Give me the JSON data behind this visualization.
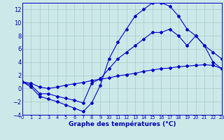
{
  "xlabel": "Graphe des températures (°C)",
  "bg_color": "#cce8e8",
  "line_color": "#0000cc",
  "grid_color": "#aacaca",
  "tick_color": "#0000bb",
  "xlim_min": 0,
  "xlim_max": 23,
  "ylim_min": -4,
  "ylim_max": 13,
  "yticks": [
    -4,
    -2,
    0,
    2,
    4,
    6,
    8,
    10,
    12
  ],
  "xticks": [
    0,
    1,
    2,
    3,
    4,
    5,
    6,
    7,
    8,
    9,
    10,
    11,
    12,
    13,
    14,
    15,
    16,
    17,
    18,
    19,
    20,
    21,
    22,
    23
  ],
  "line1_x": [
    0,
    1,
    2,
    3,
    4,
    5,
    6,
    7,
    8,
    9,
    10,
    11,
    12,
    13,
    14,
    15,
    16,
    17,
    18,
    19,
    20,
    21,
    22,
    23
  ],
  "line1_y": [
    1.0,
    0.2,
    -1.2,
    -1.6,
    -2.0,
    -2.5,
    -3.0,
    -3.5,
    -2.2,
    0.5,
    4.5,
    7.0,
    9.0,
    11.0,
    12.0,
    13.0,
    13.0,
    12.5,
    11.0,
    9.0,
    8.0,
    6.5,
    4.0,
    3.0
  ],
  "line2_x": [
    0,
    1,
    2,
    3,
    4,
    5,
    6,
    7,
    8,
    9,
    10,
    11,
    12,
    13,
    14,
    15,
    16,
    17,
    18,
    19,
    20,
    21,
    22,
    23
  ],
  "line2_y": [
    1.0,
    0.5,
    -0.8,
    -0.8,
    -1.2,
    -1.5,
    -1.8,
    -2.2,
    0.8,
    1.5,
    3.0,
    4.5,
    5.5,
    6.5,
    7.5,
    8.5,
    8.5,
    9.0,
    8.0,
    6.5,
    8.0,
    6.5,
    5.5,
    4.5
  ],
  "line3_x": [
    0,
    1,
    2,
    3,
    4,
    5,
    6,
    7,
    8,
    9,
    10,
    11,
    12,
    13,
    14,
    15,
    16,
    17,
    18,
    19,
    20,
    21,
    22,
    23
  ],
  "line3_y": [
    1.0,
    0.8,
    0.2,
    0.0,
    0.2,
    0.5,
    0.7,
    0.9,
    1.2,
    1.4,
    1.6,
    1.9,
    2.1,
    2.3,
    2.6,
    2.8,
    3.0,
    3.1,
    3.3,
    3.4,
    3.5,
    3.6,
    3.5,
    3.0
  ]
}
